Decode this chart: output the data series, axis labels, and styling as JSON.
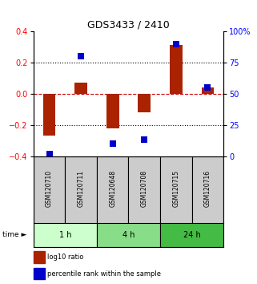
{
  "title": "GDS3433 / 2410",
  "samples": [
    "GSM120710",
    "GSM120711",
    "GSM120648",
    "GSM120708",
    "GSM120715",
    "GSM120716"
  ],
  "log10_ratio": [
    -0.27,
    0.07,
    -0.22,
    -0.12,
    0.31,
    0.04
  ],
  "percentile": [
    2,
    80,
    10,
    13,
    90,
    55
  ],
  "time_groups": [
    {
      "label": "1 h",
      "start": 0,
      "end": 2,
      "color": "#ccffcc"
    },
    {
      "label": "4 h",
      "start": 2,
      "end": 4,
      "color": "#88dd88"
    },
    {
      "label": "24 h",
      "start": 4,
      "end": 6,
      "color": "#44bb44"
    }
  ],
  "bar_color": "#aa2200",
  "dot_color": "#0000cc",
  "ylim_left": [
    -0.4,
    0.4
  ],
  "ylim_right": [
    0,
    100
  ],
  "yticks_left": [
    -0.4,
    -0.2,
    0.0,
    0.2,
    0.4
  ],
  "yticks_right": [
    0,
    25,
    50,
    75,
    100
  ],
  "hline_color": "#cc0000",
  "dotline_color": "#000000",
  "legend_red": "log10 ratio",
  "legend_blue": "percentile rank within the sample",
  "bar_width": 0.4,
  "sample_box_color": "#cccccc",
  "fig_width": 3.21,
  "fig_height": 3.54,
  "dpi": 100
}
